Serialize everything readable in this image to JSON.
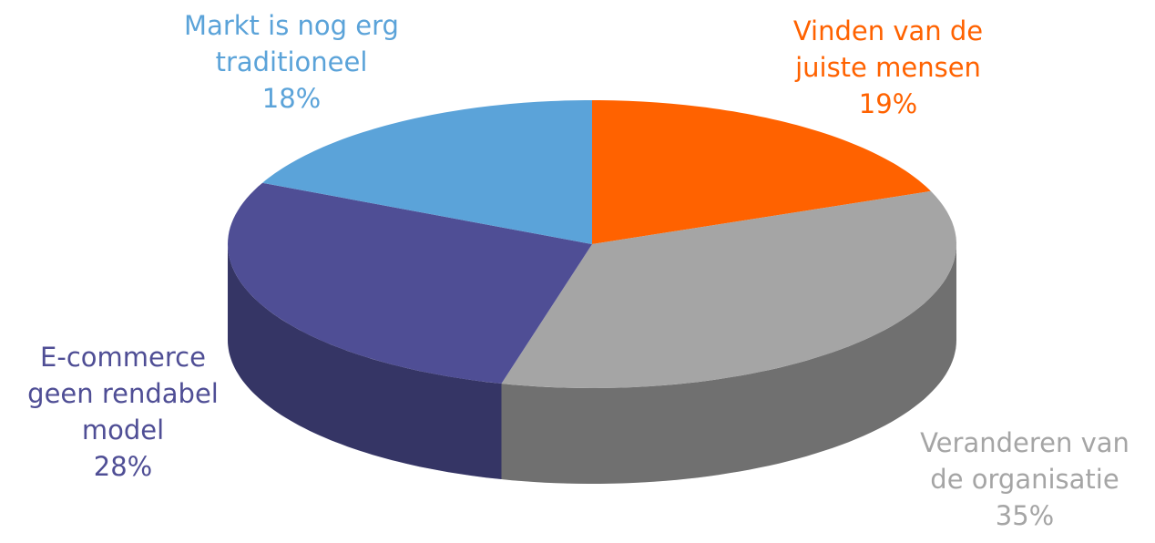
{
  "chart_data": {
    "type": "pie",
    "categories": [
      "Vinden van de juiste mensen",
      "Veranderen van de organisatie",
      "E-commerce geen rendabel model",
      "Markt is nog erg traditioneel"
    ],
    "values": [
      19,
      35,
      28,
      18
    ],
    "value_labels": [
      "19%",
      "35%",
      "28%",
      "18%"
    ],
    "colors": [
      "#ff6200",
      "#a5a5a5",
      "#4f4e95",
      "#5ba3d9"
    ]
  }
}
